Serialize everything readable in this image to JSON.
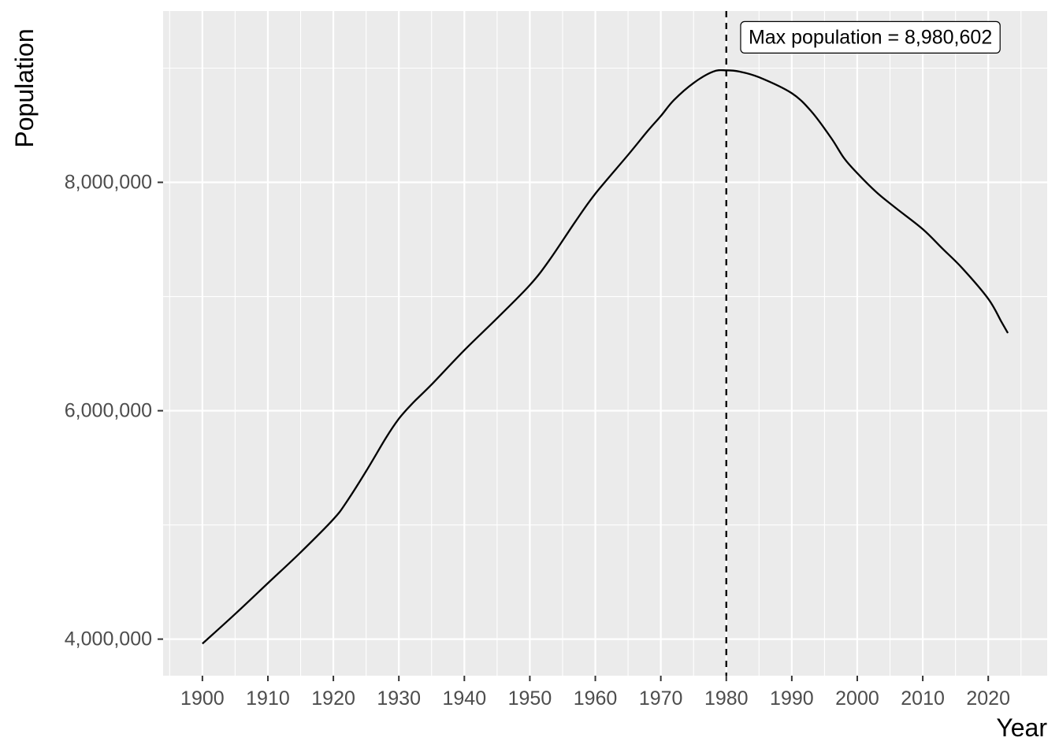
{
  "chart_data": {
    "type": "line",
    "xlabel": "Year",
    "ylabel": "Population",
    "xlim": [
      1894,
      2029
    ],
    "ylim": [
      3680000,
      9500000
    ],
    "x_ticks": [
      1900,
      1910,
      1920,
      1930,
      1940,
      1950,
      1960,
      1970,
      1980,
      1990,
      2000,
      2010,
      2020
    ],
    "x_tick_labels": [
      "1900",
      "1910",
      "1920",
      "1930",
      "1940",
      "1950",
      "1960",
      "1970",
      "1980",
      "1990",
      "2000",
      "2010",
      "2020"
    ],
    "y_ticks": [
      4000000,
      6000000,
      8000000
    ],
    "y_tick_labels": [
      "4,000,000",
      "6,000,000",
      "8,000,000"
    ],
    "grid": true,
    "background_color": "#ebebeb",
    "line_color": "#000000",
    "series": [
      {
        "x": [
          1900,
          1905,
          1910,
          1915,
          1920,
          1922,
          1925,
          1928,
          1930,
          1932,
          1935,
          1940,
          1945,
          1950,
          1953,
          1957,
          1960,
          1965,
          1968,
          1970,
          1972,
          1975,
          1978,
          1980,
          1982,
          1985,
          1990,
          1993,
          1996,
          1998,
          2000,
          2003,
          2006,
          2010,
          2013,
          2016,
          2020,
          2022,
          2023
        ],
        "y": [
          3960000,
          4220000,
          4490000,
          4760000,
          5050000,
          5200000,
          5470000,
          5760000,
          5930000,
          6060000,
          6230000,
          6530000,
          6810000,
          7100000,
          7320000,
          7660000,
          7900000,
          8240000,
          8450000,
          8580000,
          8720000,
          8870000,
          8970000,
          8980602,
          8970000,
          8920000,
          8780000,
          8620000,
          8390000,
          8210000,
          8080000,
          7910000,
          7770000,
          7590000,
          7420000,
          7250000,
          6980000,
          6780000,
          6680000
        ]
      }
    ],
    "vline": {
      "x": 1980,
      "style": "dashed"
    },
    "annotation": {
      "text": "Max population = 8,980,602",
      "x": 2002,
      "y": 9270000
    }
  }
}
